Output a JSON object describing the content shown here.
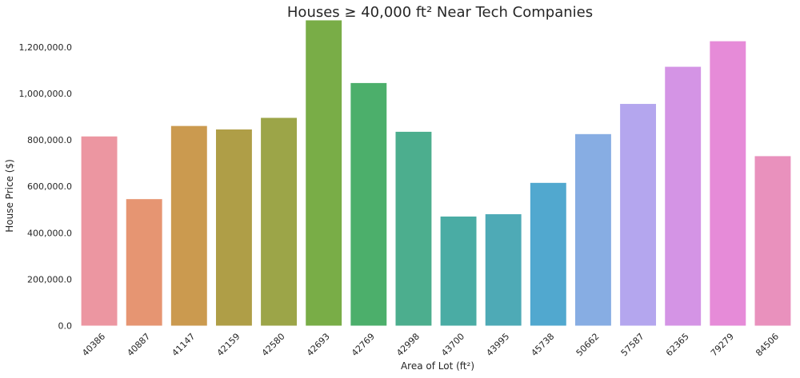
{
  "chart_data": {
    "type": "bar",
    "title": "Houses ≥ 40,000 ft² Near Tech Companies",
    "xlabel": "Area of Lot (ft²)",
    "ylabel": "House Price ($)",
    "categories": [
      "40386",
      "40887",
      "41147",
      "42159",
      "42580",
      "42693",
      "42769",
      "42998",
      "43700",
      "43995",
      "45738",
      "50662",
      "57587",
      "62365",
      "79279",
      "84506"
    ],
    "values": [
      815000,
      545000,
      860000,
      845000,
      895000,
      1315000,
      1045000,
      835000,
      470000,
      480000,
      615000,
      825000,
      955000,
      1115000,
      1225000,
      730000
    ],
    "colors": [
      "#ec96a1",
      "#e69572",
      "#cb9a4f",
      "#af9e47",
      "#9ca548",
      "#79ad47",
      "#4caf6b",
      "#4cae8e",
      "#4aaca4",
      "#4eaab6",
      "#51a8cf",
      "#87ade3",
      "#b4a6ee",
      "#d494e5",
      "#e68bd8",
      "#e991bd"
    ],
    "yticks": [
      0,
      200000,
      400000,
      600000,
      800000,
      1000000,
      1200000
    ],
    "ytick_labels": [
      "0.0",
      "200,000.0",
      "400,000.0",
      "600,000.0",
      "800,000.0",
      "1,000,000.0",
      "1,200,000.0"
    ],
    "ylim": [
      0,
      1320000
    ],
    "grid": false,
    "legend": "none"
  }
}
